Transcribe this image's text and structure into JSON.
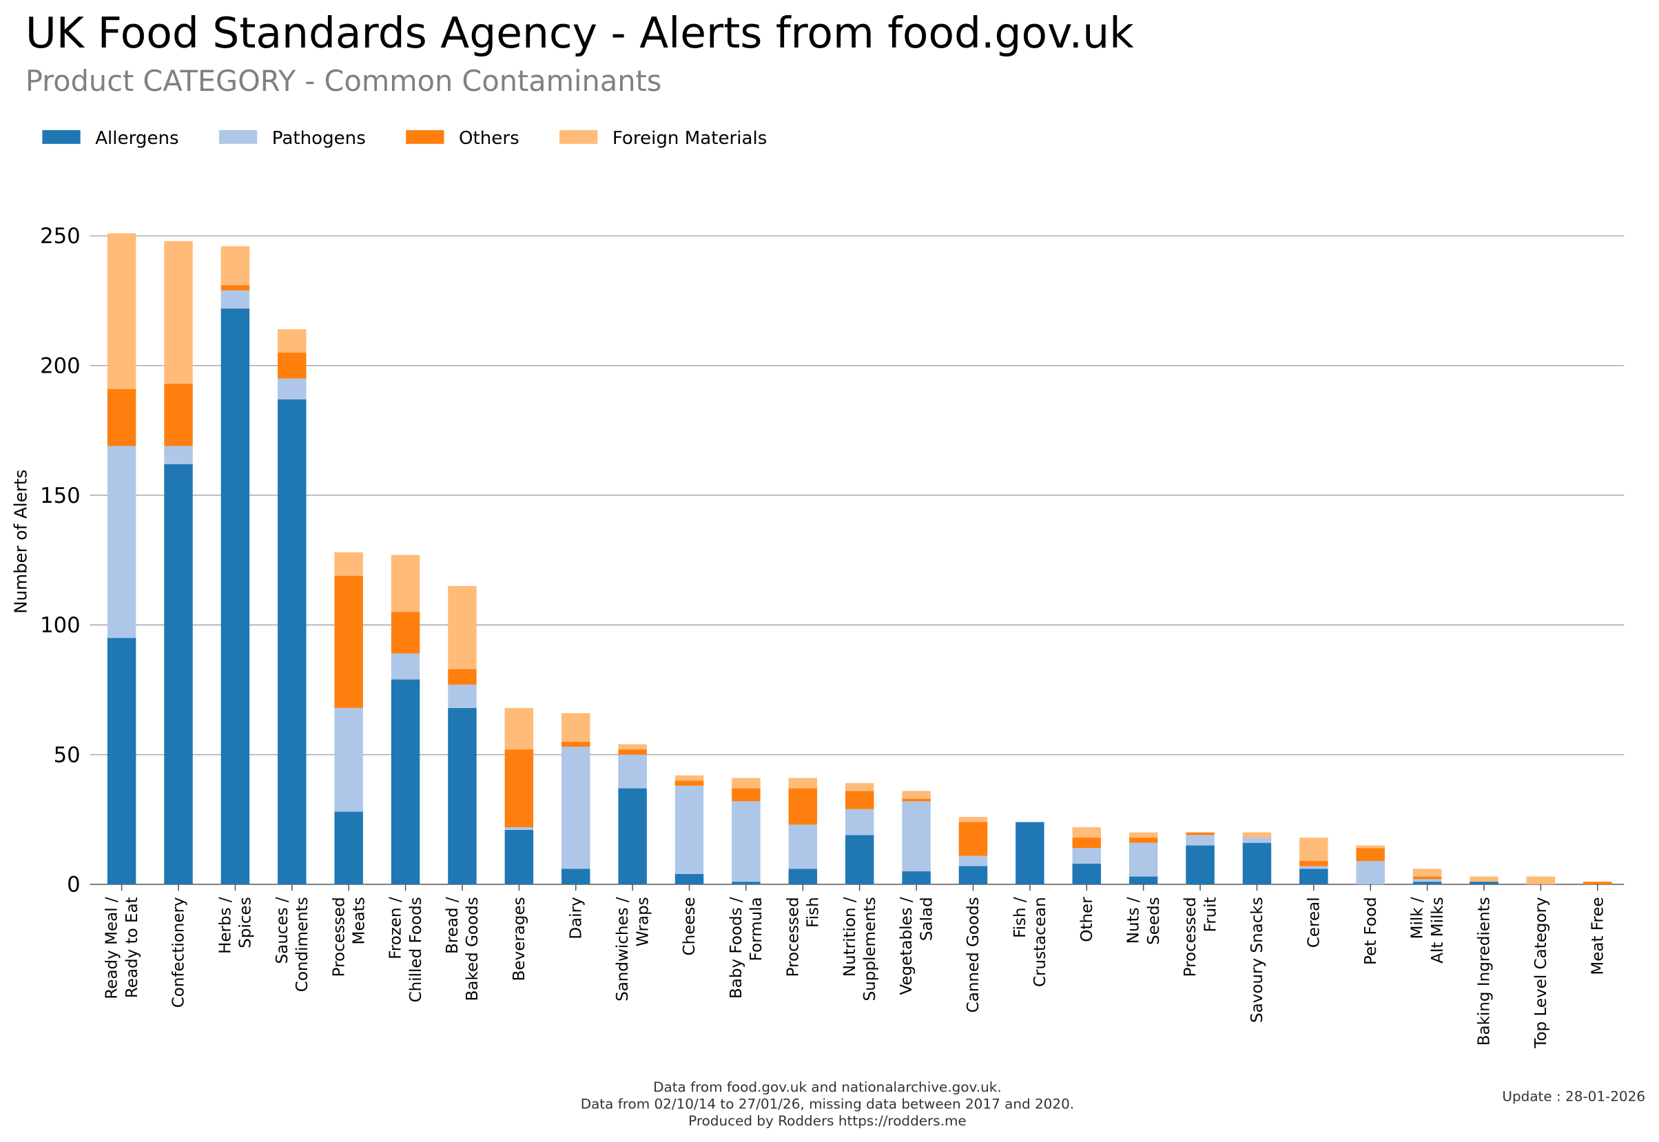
{
  "chart_data": {
    "type": "stacked_bar",
    "title": "UK Food Standards Agency - Alerts from food.gov.uk",
    "subtitle": "Product CATEGORY - Common Contaminants",
    "y_label": "Number of Alerts",
    "footer": [
      "Data from food.gov.uk and nationalarchive.gov.uk.",
      "Data from 02/10/14 to 27/01/26, missing data between 2017 and 2020.",
      "Produced by Rodders https://rodders.me"
    ],
    "update": "Update : 28-01-2026",
    "categories": [
      "Ready Meal /\nReady to Eat",
      "Confectionery",
      "Herbs /\nSpices",
      "Sauces /\nCondiments",
      "Processed\nMeats",
      "Frozen /\nChilled Foods",
      "Bread /\nBaked Goods",
      "Beverages",
      "Dairy",
      "Sandwiches /\nWraps",
      "Cheese",
      "Baby Foods /\nFormula",
      "Processed\nFish",
      "Nutrition /\nSupplements",
      "Vegetables /\nSalad",
      "Canned Goods",
      "Fish /\nCrustacean",
      "Other",
      "Nuts /\nSeeds",
      "Processed\nFruit",
      "Savoury Snacks",
      "Cereal",
      "Pet Food",
      "Milk /\nAlt Milks",
      "Baking Ingredients",
      "Top Level Category",
      "Meat Free"
    ],
    "series": [
      {
        "name": "Allergens",
        "color": "#1f77b4",
        "values": [
          95,
          162,
          222,
          187,
          28,
          79,
          68,
          21,
          6,
          37,
          4,
          1,
          6,
          19,
          5,
          7,
          24,
          8,
          3,
          15,
          16,
          6,
          0,
          1,
          1,
          0,
          0
        ]
      },
      {
        "name": "Pathogens",
        "color": "#aec7e8",
        "values": [
          74,
          7,
          7,
          8,
          40,
          10,
          9,
          1,
          47,
          13,
          34,
          31,
          17,
          10,
          27,
          4,
          0,
          6,
          13,
          4,
          2,
          1,
          9,
          1,
          0,
          0,
          0
        ]
      },
      {
        "name": "Others",
        "color": "#ff7f0e",
        "values": [
          22,
          24,
          2,
          10,
          51,
          16,
          6,
          30,
          2,
          2,
          2,
          5,
          14,
          7,
          1,
          13,
          0,
          4,
          2,
          1,
          0,
          2,
          5,
          1,
          0,
          0,
          1
        ]
      },
      {
        "name": "Foreign Materials",
        "color": "#ffbb78",
        "values": [
          60,
          55,
          15,
          9,
          9,
          22,
          32,
          16,
          11,
          2,
          2,
          4,
          4,
          3,
          3,
          2,
          0,
          4,
          2,
          0,
          2,
          9,
          1,
          3,
          2,
          3,
          0
        ]
      }
    ],
    "ylim": [
      0,
      250
    ],
    "yticks": [
      0,
      50,
      100,
      150,
      200,
      250
    ],
    "grid": true,
    "legend": "top-left"
  }
}
